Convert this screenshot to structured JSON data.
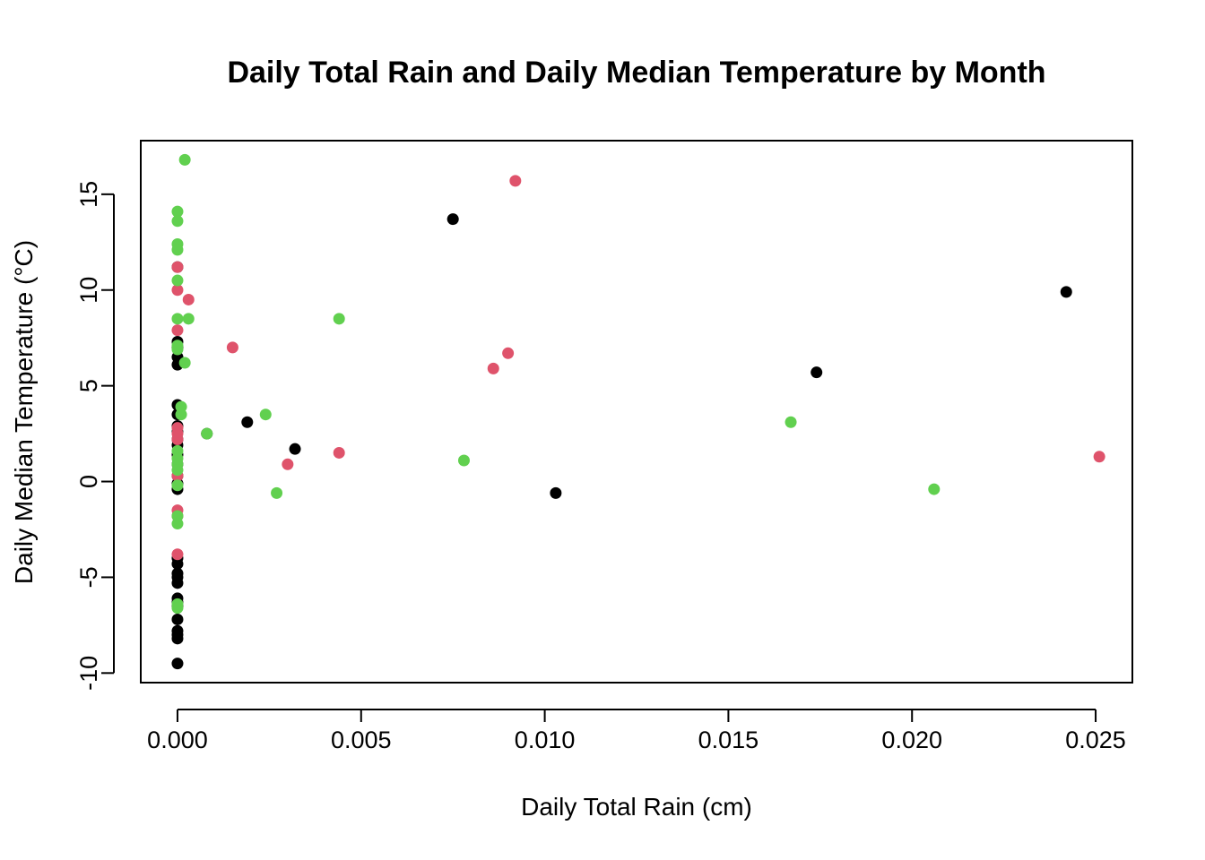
{
  "chart_data": {
    "type": "scatter",
    "title": "Daily Total Rain and Daily Median Temperature by Month",
    "xlabel": "Daily Total Rain (cm)",
    "ylabel": "Daily Median Temperature (°C)",
    "xlim": [
      -0.001,
      0.026
    ],
    "ylim": [
      -10.5,
      17.8
    ],
    "x_ticks": [
      0,
      0.005,
      0.01,
      0.015,
      0.02,
      0.025
    ],
    "x_tick_labels": [
      "0.000",
      "0.005",
      "0.010",
      "0.015",
      "0.020",
      "0.025"
    ],
    "y_ticks": [
      -10,
      -5,
      0,
      5,
      10,
      15
    ],
    "y_tick_labels": [
      "-10",
      "-5",
      "0",
      "5",
      "10",
      "15"
    ],
    "grid": false,
    "legend": "none",
    "series": [
      {
        "color": "#000000",
        "x": [
          0,
          0,
          0,
          0,
          0,
          0,
          0,
          0,
          0,
          0,
          0,
          0,
          0,
          0,
          0,
          0,
          0,
          0,
          0,
          0,
          0,
          0,
          0,
          0,
          0,
          0,
          0,
          0,
          0,
          0.0008,
          0.0019,
          0.0032,
          0.0075,
          0.0103,
          0.0174,
          0.0242
        ],
        "y": [
          11.2,
          7.3,
          7.0,
          6.5,
          6.1,
          4.0,
          3.5,
          2.9,
          2.6,
          2.2,
          1.9,
          1.4,
          0.9,
          0.3,
          -0.1,
          -0.4,
          -4.0,
          -4.3,
          -4.8,
          -5.0,
          -5.3,
          -6.1,
          -6.3,
          -6.5,
          -7.2,
          -7.8,
          -8.0,
          -8.2,
          -9.5,
          2.5,
          3.1,
          1.7,
          13.7,
          -0.6,
          5.7,
          9.9
        ]
      },
      {
        "color": "#DF536B",
        "x": [
          0,
          0,
          0,
          0,
          0,
          0,
          0,
          0,
          0,
          0,
          0.0003,
          0.0015,
          0.003,
          0.0044,
          0.0086,
          0.009,
          0.0092,
          0.0251
        ],
        "y": [
          11.2,
          10.0,
          7.9,
          2.8,
          2.5,
          2.2,
          0.3,
          -1.5,
          -1.8,
          -3.8,
          9.5,
          7.0,
          0.9,
          1.5,
          5.9,
          6.7,
          15.7,
          1.3
        ]
      },
      {
        "color": "#61D04F",
        "x": [
          0.0002,
          0,
          0,
          0,
          0,
          0,
          0,
          0,
          0,
          0.0003,
          0.0002,
          0.0001,
          0.0001,
          0,
          0,
          0,
          0,
          0,
          0,
          0,
          0,
          0,
          0.0008,
          0.0024,
          0.0027,
          0.0044,
          0.0078,
          0.0167,
          0.0206
        ],
        "y": [
          16.8,
          14.1,
          13.6,
          12.4,
          12.1,
          10.5,
          8.5,
          7.1,
          6.9,
          8.5,
          6.2,
          3.9,
          3.5,
          1.6,
          1.2,
          0.9,
          0.6,
          -0.2,
          -1.8,
          -2.2,
          -6.4,
          -6.6,
          2.5,
          3.5,
          -0.6,
          8.5,
          1.1,
          3.1,
          -0.4
        ]
      }
    ]
  }
}
